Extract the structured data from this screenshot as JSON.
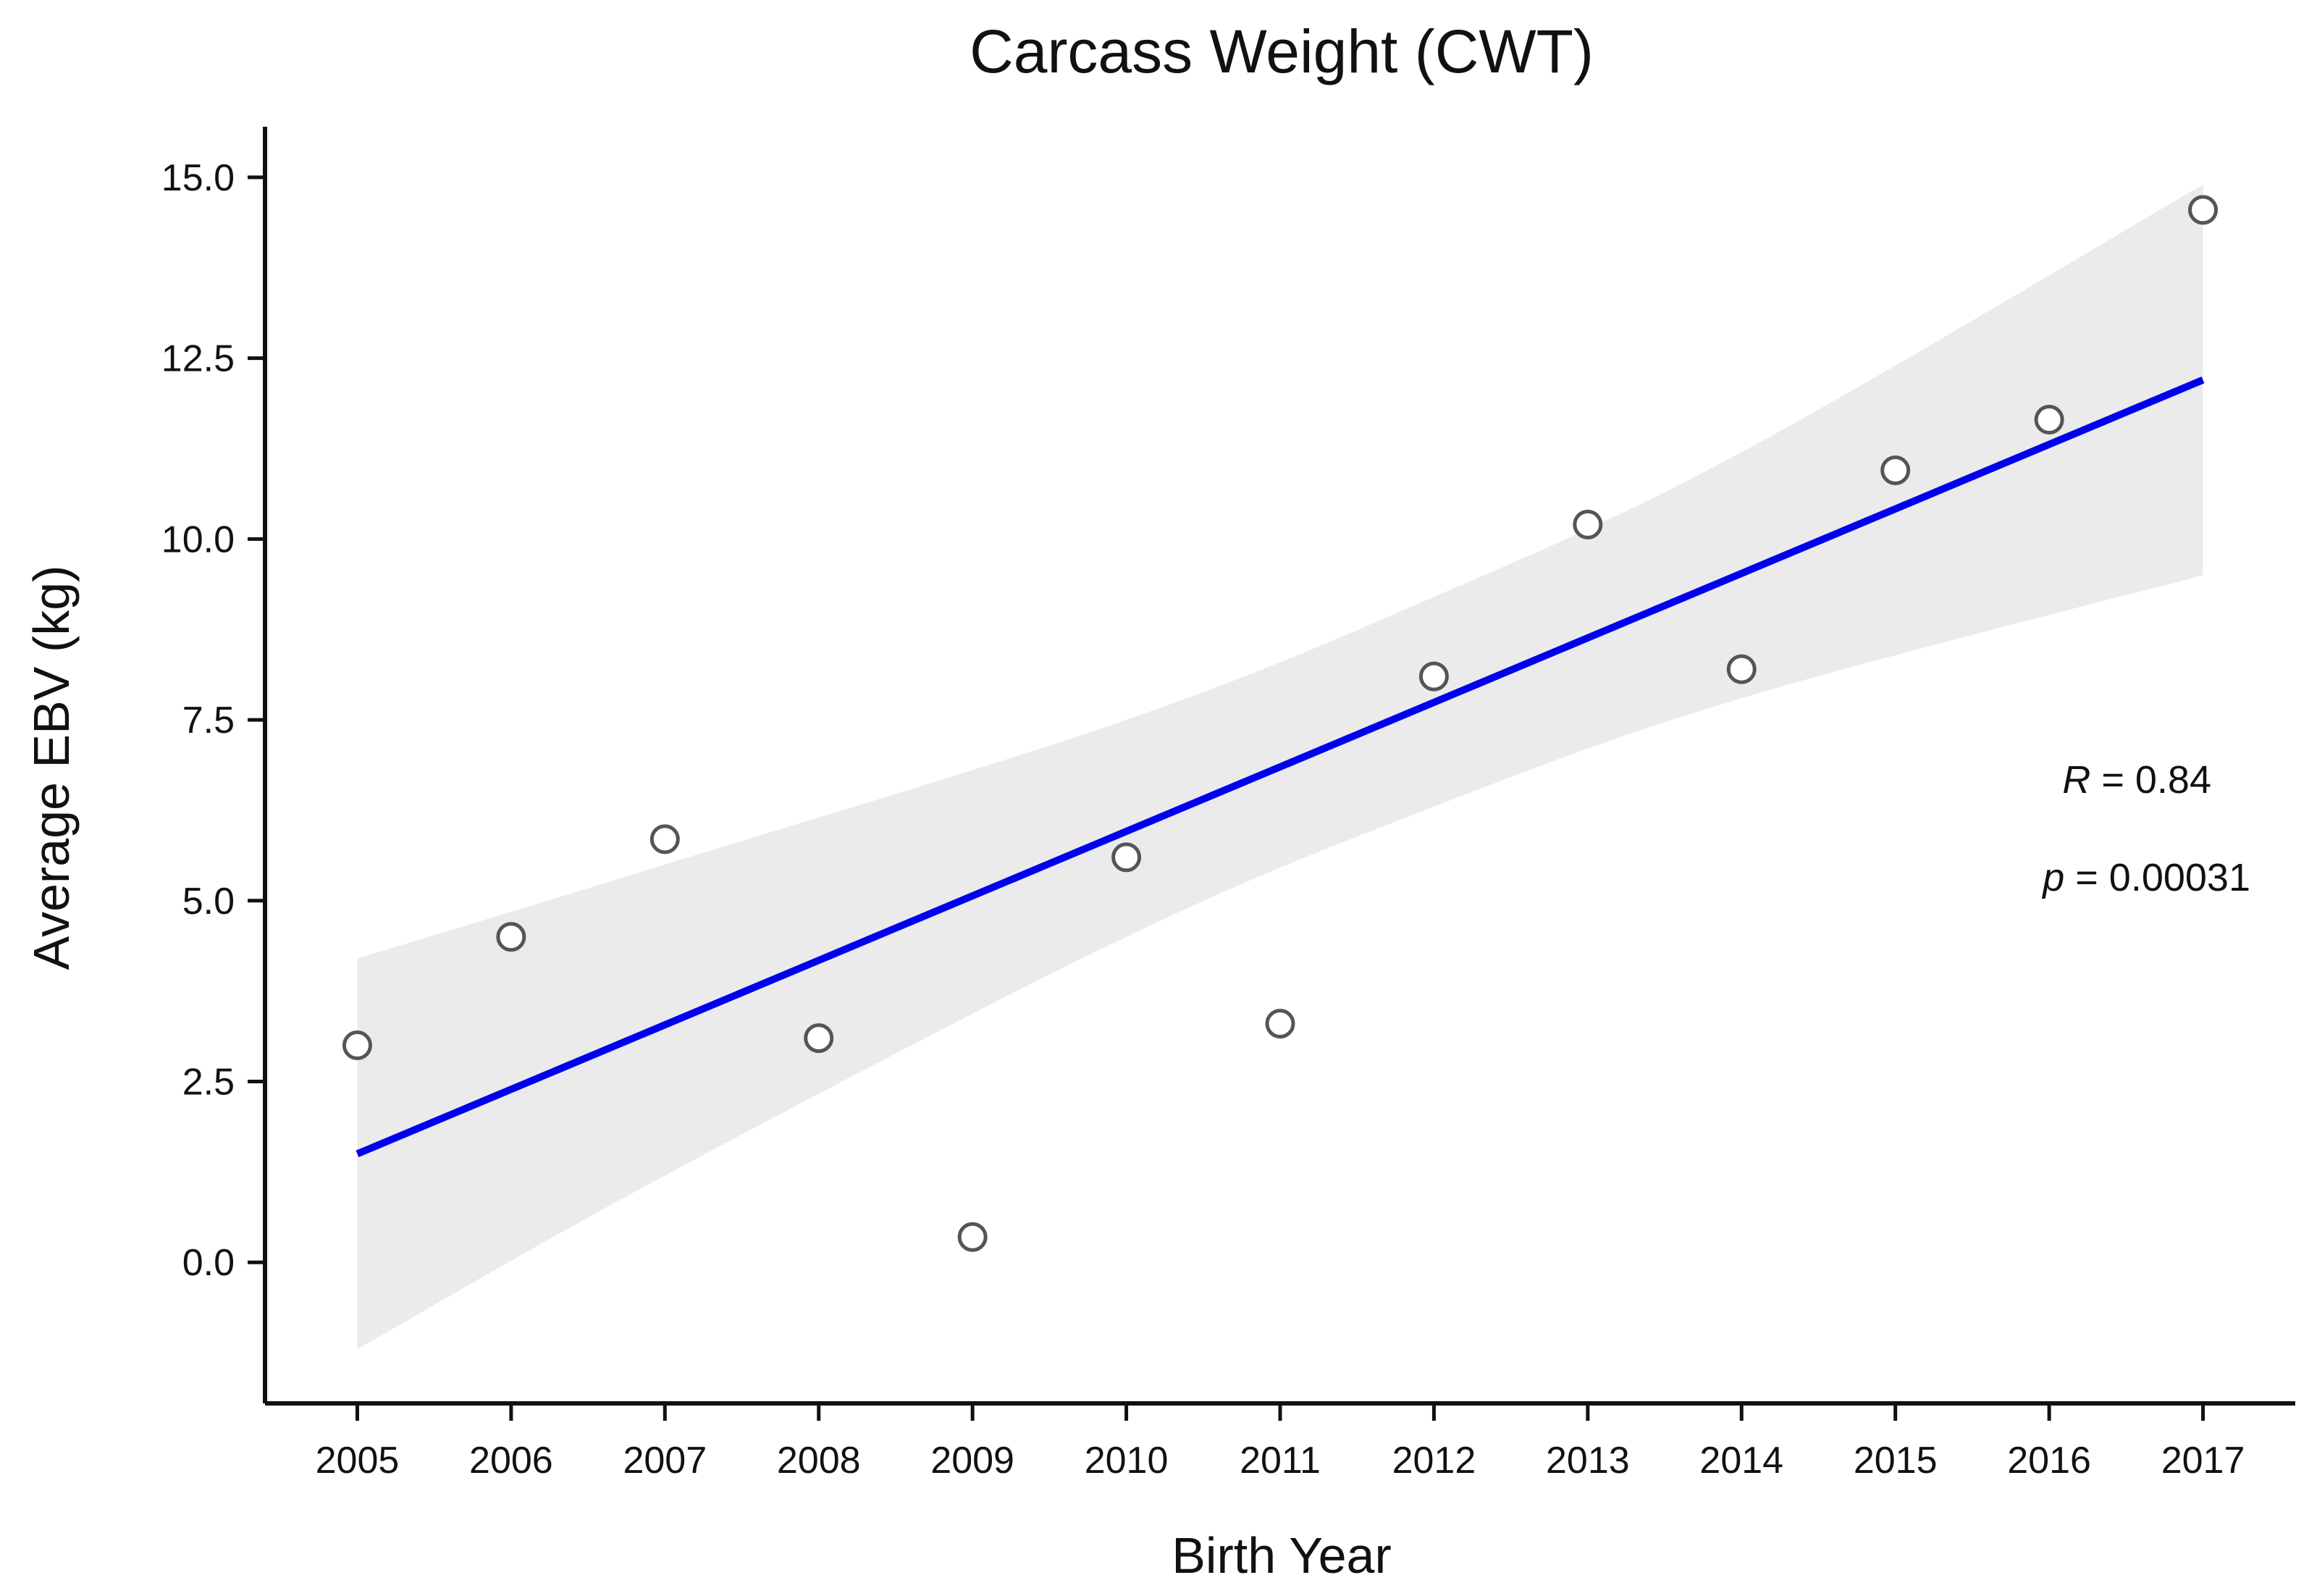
{
  "chart_data": {
    "type": "scatter",
    "title": "Carcass Weight (CWT)",
    "xlabel": "Birth Year",
    "ylabel": "Average EBV (kg)",
    "x": [
      2005,
      2006,
      2007,
      2008,
      2009,
      2010,
      2011,
      2012,
      2013,
      2014,
      2015,
      2016,
      2017
    ],
    "y": [
      3.0,
      4.5,
      5.85,
      3.1,
      0.35,
      5.6,
      3.3,
      8.1,
      10.2,
      8.2,
      10.95,
      11.65,
      14.55
    ],
    "xlim": [
      2004.4,
      2017.6
    ],
    "ylim": [
      -1.95,
      15.7
    ],
    "yticks": [
      0.0,
      2.5,
      5.0,
      7.5,
      10.0,
      12.5,
      15.0
    ],
    "ytick_labels": [
      "0.0",
      "2.5",
      "5.0",
      "7.5",
      "10.0",
      "12.5",
      "15.0"
    ],
    "xticks": [
      2005,
      2006,
      2007,
      2008,
      2009,
      2010,
      2011,
      2012,
      2013,
      2014,
      2015,
      2016,
      2017
    ],
    "xtick_labels": [
      "2005",
      "2006",
      "2007",
      "2008",
      "2009",
      "2010",
      "2011",
      "2012",
      "2013",
      "2014",
      "2015",
      "2016",
      "2017"
    ],
    "regression_line": {
      "x": [
        2005,
        2017
      ],
      "y": [
        1.5,
        12.2
      ]
    },
    "confidence_band": {
      "x": [
        2005,
        2007,
        2010,
        2012,
        2014,
        2017
      ],
      "upper": [
        4.2,
        5.5,
        7.5,
        9.2,
        11.2,
        14.9
      ],
      "lower": [
        -1.2,
        1.2,
        4.5,
        6.3,
        7.8,
        9.5
      ]
    },
    "annotations": {
      "r_symbol": "R",
      "r_value": " = 0.84",
      "p_symbol": "p",
      "p_value": " = 0.00031"
    },
    "grid": false,
    "colors": {
      "line": "#0000ee",
      "band": "#ebebeb",
      "points": "#555555",
      "axis": "#111111"
    }
  }
}
